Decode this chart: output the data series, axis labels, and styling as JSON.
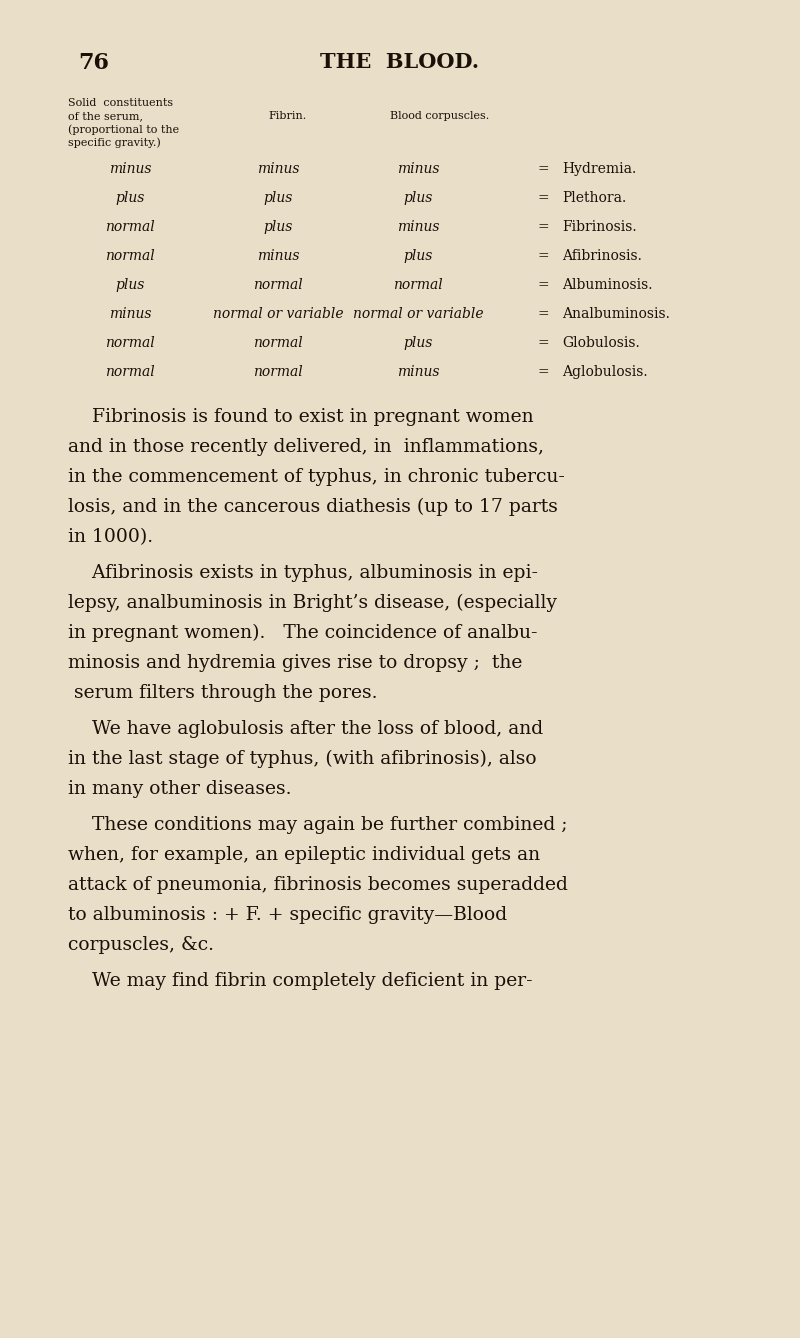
{
  "bg_color": "#e9dfc9",
  "text_color": "#1a1008",
  "page_number": "76",
  "page_title": "THE  BLOOD.",
  "table_rows": [
    [
      "minus",
      "minus",
      "minus",
      "Hydremia."
    ],
    [
      "plus",
      "plus",
      "plus",
      "Plethora."
    ],
    [
      "normal",
      "plus",
      "minus",
      "Fibrinosis."
    ],
    [
      "normal",
      "minus",
      "plus",
      "Afibrinosis."
    ],
    [
      "plus",
      "normal",
      "normal",
      "Albuminosis."
    ],
    [
      "minus",
      "normal or variable",
      "normal or variable",
      "Analbuminosis."
    ],
    [
      "normal",
      "normal",
      "plus",
      "Globulosis."
    ],
    [
      "normal",
      "normal",
      "minus",
      "Aglobulosis."
    ]
  ],
  "paragraphs": [
    [
      "    Fibrinosis is found to exist in pregnant women",
      "and in those recently delivered, in  inflammations,",
      "in the commencement of typhus, in chronic tubercu-",
      "losis, and in the cancerous diathesis (up to 17 parts",
      "in 1000)."
    ],
    [
      "    Afibrinosis exists in typhus, albuminosis in epi-",
      "lepsy, analbuminosis in Bright’s disease, (especially",
      "in pregnant women).   The coincidence of analbu-",
      "minosis and hydremia gives rise to dropsy ;  the",
      " serum filters through the pores."
    ],
    [
      "    We have aglobulosis after the loss of blood, and",
      "in the last stage of typhus, (with afibrinosis), also",
      "in many other diseases."
    ],
    [
      "    These conditions may again be further combined ;",
      "when, for example, an epileptic individual gets an",
      "attack of pneumonia, fibrinosis becomes superadded",
      "to albuminosis : + F. + specific gravity—Blood",
      "corpuscles, &c."
    ],
    [
      "    We may find fibrin completely deficient in per-"
    ]
  ],
  "fig_width": 8.0,
  "fig_height": 13.38,
  "dpi": 100
}
